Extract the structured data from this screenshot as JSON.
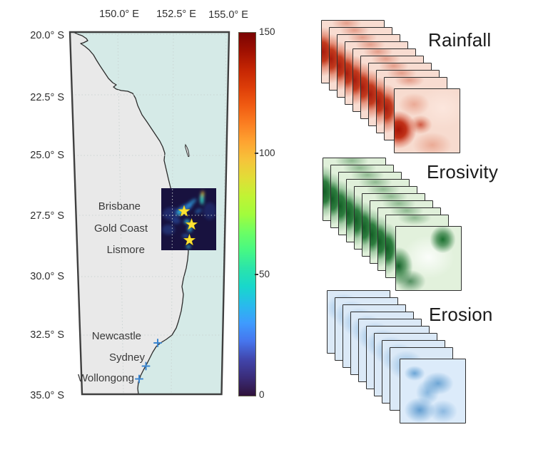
{
  "map": {
    "lon_ticks": [
      "150.0° E",
      "152.5° E",
      "155.0° E"
    ],
    "lat_ticks": [
      "20.0° S",
      "22.5° S",
      "25.0° S",
      "27.5° S",
      "30.0° S",
      "32.5° S",
      "35.0° S"
    ],
    "star_cities": [
      "Brisbane",
      "Gold Coast",
      "Lismore"
    ],
    "marker_cities": [
      "Newcastle",
      "Sydney",
      "Wollongong"
    ],
    "colors": {
      "ocean": "#d5eae7",
      "land": "#e9e9e9",
      "coastline": "#2b2b2b",
      "frame": "#3f3f3f",
      "star_marker": "#ffe235",
      "city_marker": "#3c86cf",
      "overlay_base": "#18123f"
    }
  },
  "colorbar": {
    "min": 0,
    "max": 150,
    "ticks": [
      "150",
      "100",
      "50",
      "0"
    ],
    "colormap": "turbo"
  },
  "stacks": [
    {
      "label": "Rainfall",
      "layers": 10,
      "base_color": "#f8dcd1",
      "blob_color": "#b42318"
    },
    {
      "label": "Erosivity",
      "layers": 10,
      "base_color": "#e0f0da",
      "blob_color": "#1f7a33"
    },
    {
      "label": "Erosion",
      "layers": 10,
      "base_color": "#dbe9f7",
      "blob_color": "#4e97cc"
    }
  ]
}
